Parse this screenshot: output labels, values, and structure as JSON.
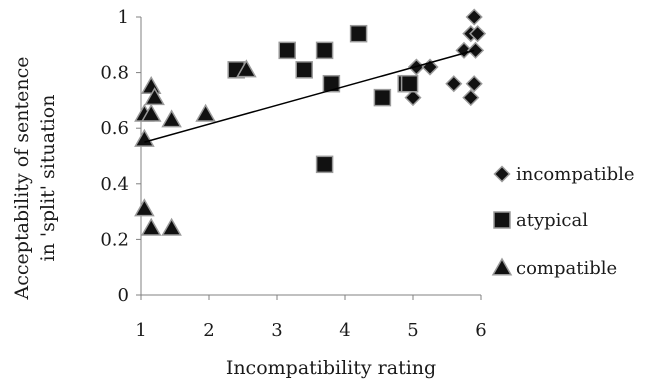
{
  "chart_data": {
    "type": "scatter",
    "xlabel": "Incompatibility rating",
    "ylabel": [
      "Acceptability of sentence",
      "in 'split' situation"
    ],
    "xlim": [
      1,
      6
    ],
    "ylim": [
      0,
      1
    ],
    "xticks": [
      "1",
      "2",
      "3",
      "4",
      "5",
      "6"
    ],
    "yticks": [
      "0",
      "0.2",
      "0.4",
      "0.6",
      "0.8",
      "1"
    ],
    "grid": false,
    "legend_position": "right",
    "colors": {
      "marker_fill": "#111111",
      "marker_stroke": "#9a9a9a",
      "line": "#000000"
    },
    "series": [
      {
        "name": "incompatible",
        "marker": "diamond",
        "points": [
          [
            5.9,
            1.0
          ],
          [
            5.85,
            0.94
          ],
          [
            5.95,
            0.94
          ],
          [
            5.75,
            0.88
          ],
          [
            5.92,
            0.88
          ],
          [
            5.05,
            0.82
          ],
          [
            5.25,
            0.82
          ],
          [
            5.6,
            0.76
          ],
          [
            5.9,
            0.76
          ],
          [
            5.0,
            0.71
          ],
          [
            5.85,
            0.71
          ]
        ]
      },
      {
        "name": "atypical",
        "marker": "square",
        "points": [
          [
            4.2,
            0.94
          ],
          [
            3.15,
            0.88
          ],
          [
            3.7,
            0.88
          ],
          [
            2.4,
            0.81
          ],
          [
            3.4,
            0.81
          ],
          [
            3.8,
            0.76
          ],
          [
            4.9,
            0.76
          ],
          [
            4.95,
            0.76
          ],
          [
            4.55,
            0.71
          ],
          [
            3.7,
            0.47
          ]
        ]
      },
      {
        "name": "compatible",
        "marker": "triangle",
        "points": [
          [
            2.55,
            0.81
          ],
          [
            1.15,
            0.75
          ],
          [
            1.2,
            0.71
          ],
          [
            1.05,
            0.65
          ],
          [
            1.15,
            0.65
          ],
          [
            1.45,
            0.63
          ],
          [
            1.95,
            0.65
          ],
          [
            1.05,
            0.56
          ],
          [
            1.05,
            0.31
          ],
          [
            1.15,
            0.24
          ],
          [
            1.45,
            0.24
          ]
        ]
      }
    ],
    "trendline": {
      "x": [
        1.05,
        5.9
      ],
      "y": [
        0.55,
        0.88
      ]
    }
  }
}
